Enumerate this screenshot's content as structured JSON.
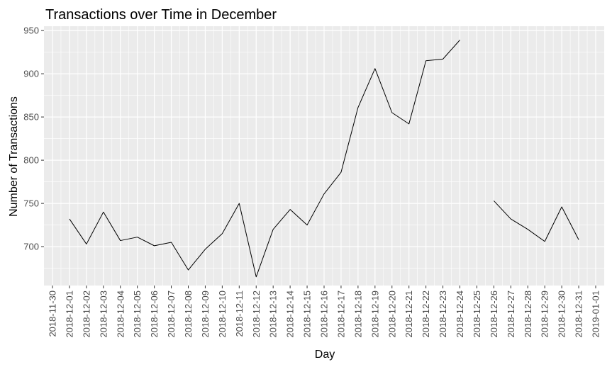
{
  "chart_data": {
    "type": "line",
    "title": "Transactions over Time in December",
    "xlabel": "Day",
    "ylabel": "Number of Transactions",
    "x_ticks": [
      "2018-11-30",
      "2018-12-01",
      "2018-12-02",
      "2018-12-03",
      "2018-12-04",
      "2018-12-05",
      "2018-12-06",
      "2018-12-07",
      "2018-12-08",
      "2018-12-09",
      "2018-12-10",
      "2018-12-11",
      "2018-12-12",
      "2018-12-13",
      "2018-12-14",
      "2018-12-15",
      "2018-12-16",
      "2018-12-17",
      "2018-12-18",
      "2018-12-19",
      "2018-12-20",
      "2018-12-21",
      "2018-12-22",
      "2018-12-23",
      "2018-12-24",
      "2018-12-25",
      "2018-12-26",
      "2018-12-27",
      "2018-12-28",
      "2018-12-29",
      "2018-12-30",
      "2018-12-31",
      "2019-01-01"
    ],
    "y_ticks": [
      700,
      750,
      800,
      850,
      900,
      950
    ],
    "xlim": [
      "2018-11-30",
      "2019-01-01"
    ],
    "ylim": [
      655,
      955
    ],
    "grid": true,
    "line_color": "#000000",
    "panel_color": "#ebebeb",
    "grid_color": "#ffffff",
    "series": [
      {
        "x": [
          "2018-12-01",
          "2018-12-02",
          "2018-12-03",
          "2018-12-04",
          "2018-12-05",
          "2018-12-06",
          "2018-12-07",
          "2018-12-08",
          "2018-12-09",
          "2018-12-10",
          "2018-12-11",
          "2018-12-12",
          "2018-12-13",
          "2018-12-14",
          "2018-12-15",
          "2018-12-16",
          "2018-12-17",
          "2018-12-18",
          "2018-12-19",
          "2018-12-20",
          "2018-12-21",
          "2018-12-22",
          "2018-12-23",
          "2018-12-24",
          "2018-12-25",
          "2018-12-26",
          "2018-12-27",
          "2018-12-28",
          "2018-12-29",
          "2018-12-30",
          "2018-12-31"
        ],
        "values": [
          732,
          703,
          740,
          707,
          711,
          701,
          705,
          673,
          697,
          715,
          750,
          665,
          720,
          743,
          725,
          761,
          786,
          861,
          906,
          855,
          842,
          915,
          917,
          939,
          null,
          753,
          732,
          720,
          706,
          746,
          708
        ]
      }
    ]
  }
}
